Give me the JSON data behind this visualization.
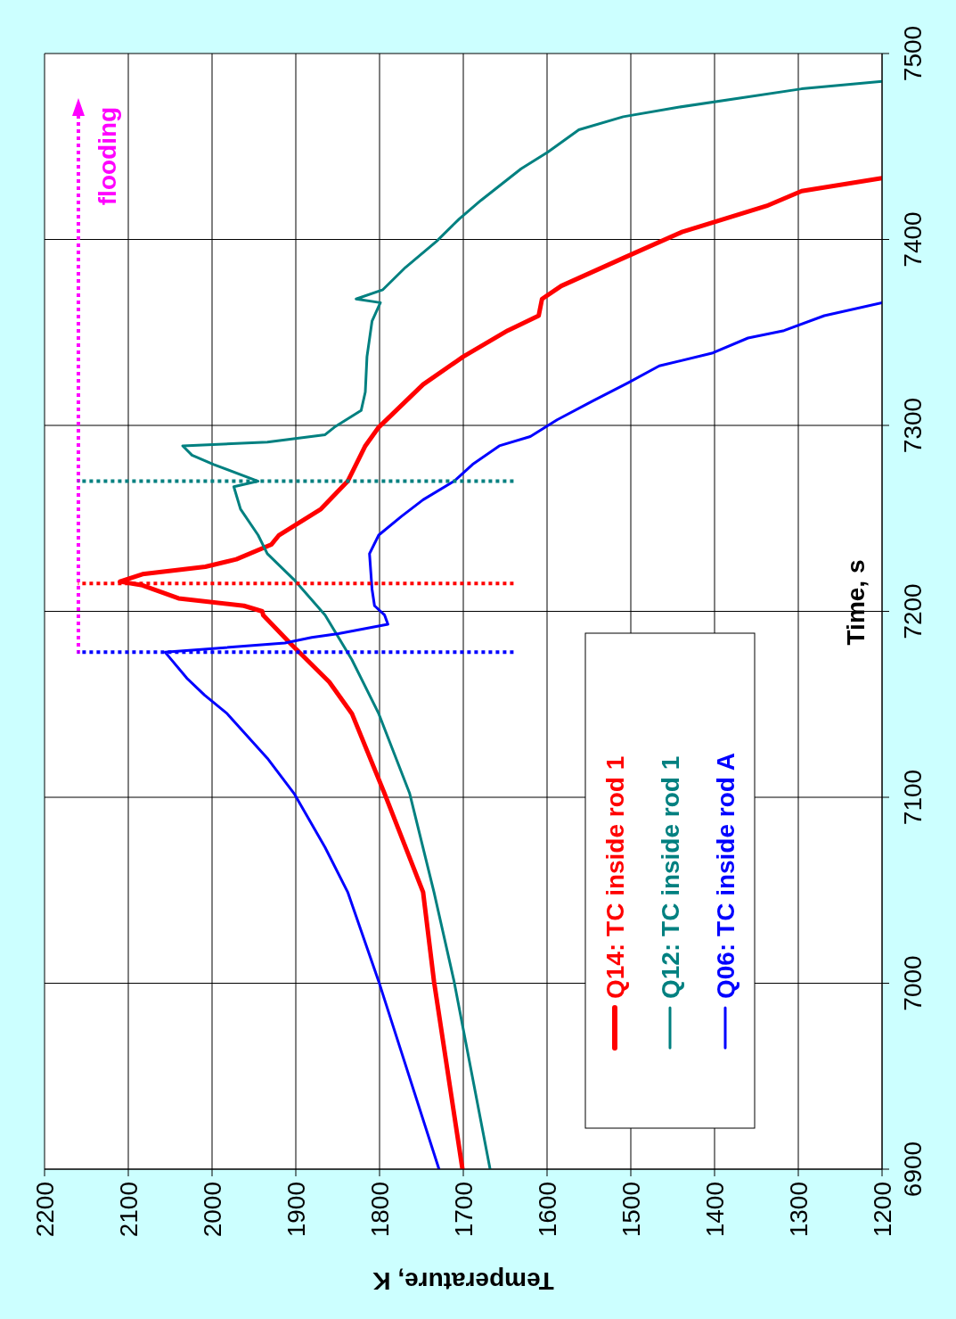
{
  "chart_data": {
    "type": "line",
    "xlabel": "Temperature, K",
    "ylabel": "Time, s",
    "ylim": [
      6900,
      7500
    ],
    "yticks": [
      6900,
      7000,
      7100,
      7200,
      7300,
      7400,
      7500
    ],
    "xlim": [
      2200,
      1200
    ],
    "xticks": [
      2200,
      2100,
      2000,
      1900,
      1800,
      1700,
      1600,
      1500,
      1400,
      1300,
      1200
    ],
    "grid": true,
    "legend": "bottom right",
    "marker": "none",
    "annotations": [
      "flooding"
    ],
    "series": [
      {
        "name": "Q14: TC inside rod 1",
        "color": "#ff0000",
        "line_style": "solid",
        "values": [
          6900,
          7001,
          7049,
          7102,
          7145,
          7162,
          7183,
          7198,
          7200,
          7203,
          7207,
          7214,
          7216,
          7220,
          7224,
          7228,
          7236,
          7241,
          7255,
          7270,
          7289,
          7299,
          7322,
          7337,
          7351,
          7359,
          7368,
          7375,
          7390,
          7404,
          7418,
          7426,
          7433
        ],
        "x": [
          1701,
          1735,
          1748,
          1794,
          1833,
          1860,
          1907,
          1939,
          1940,
          1962,
          2040,
          2083,
          2110,
          2083,
          2008,
          1971,
          1929,
          1920,
          1870,
          1838,
          1817,
          1801,
          1748,
          1700,
          1647,
          1610,
          1606,
          1583,
          1509,
          1439,
          1338,
          1296,
          1200
        ]
      },
      {
        "name": "Q12: TC inside rod 1",
        "color": "#008080",
        "line_style": "solid",
        "values": [
          6900,
          7001,
          7049,
          7102,
          7145,
          7174,
          7198,
          7217,
          7231,
          7241,
          7255,
          7267,
          7270,
          7279,
          7284,
          7289,
          7291,
          7295,
          7299,
          7308,
          7318,
          7337,
          7356,
          7366,
          7368,
          7373,
          7385,
          7399,
          7411,
          7421,
          7438,
          7447,
          7459,
          7466,
          7471,
          7476,
          7481,
          7485
        ],
        "x": [
          1668,
          1711,
          1735,
          1764,
          1801,
          1833,
          1865,
          1902,
          1934,
          1945,
          1966,
          1974,
          1945,
          1998,
          2024,
          2035,
          1934,
          1865,
          1854,
          1822,
          1817,
          1815,
          1809,
          1799,
          1828,
          1796,
          1769,
          1732,
          1705,
          1679,
          1631,
          1599,
          1562,
          1509,
          1445,
          1370,
          1296,
          1200
        ]
      },
      {
        "name": "Q06: TC inside rod A",
        "color": "#0000ff",
        "line_style": "solid",
        "values": [
          6900,
          7001,
          7049,
          7073,
          7102,
          7121,
          7145,
          7155,
          7164,
          7178,
          7183,
          7186,
          7188,
          7193,
          7198,
          7203,
          7212,
          7231,
          7241,
          7251,
          7260,
          7270,
          7279,
          7289,
          7294,
          7303,
          7313,
          7323,
          7332,
          7339,
          7347,
          7351,
          7359,
          7366
        ],
        "x": [
          1729,
          1801,
          1838,
          1865,
          1902,
          1934,
          1982,
          2009,
          2030,
          2056,
          1913,
          1881,
          1849,
          1790,
          1794,
          1806,
          1809,
          1812,
          1801,
          1774,
          1748,
          1711,
          1689,
          1657,
          1620,
          1588,
          1546,
          1503,
          1466,
          1402,
          1360,
          1317,
          1269,
          1200
        ]
      },
      {
        "color": "#0000ff",
        "line_style": "dotted",
        "values": [
          7178,
          7178
        ],
        "x": [
          1640,
          2160
        ]
      },
      {
        "color": "#ff0000",
        "line_style": "dotted",
        "values": [
          7215,
          7215
        ],
        "x": [
          1640,
          2160
        ]
      },
      {
        "color": "#008080",
        "line_style": "dotted",
        "values": [
          7270,
          7270
        ],
        "x": [
          1640,
          2160
        ]
      }
    ]
  }
}
